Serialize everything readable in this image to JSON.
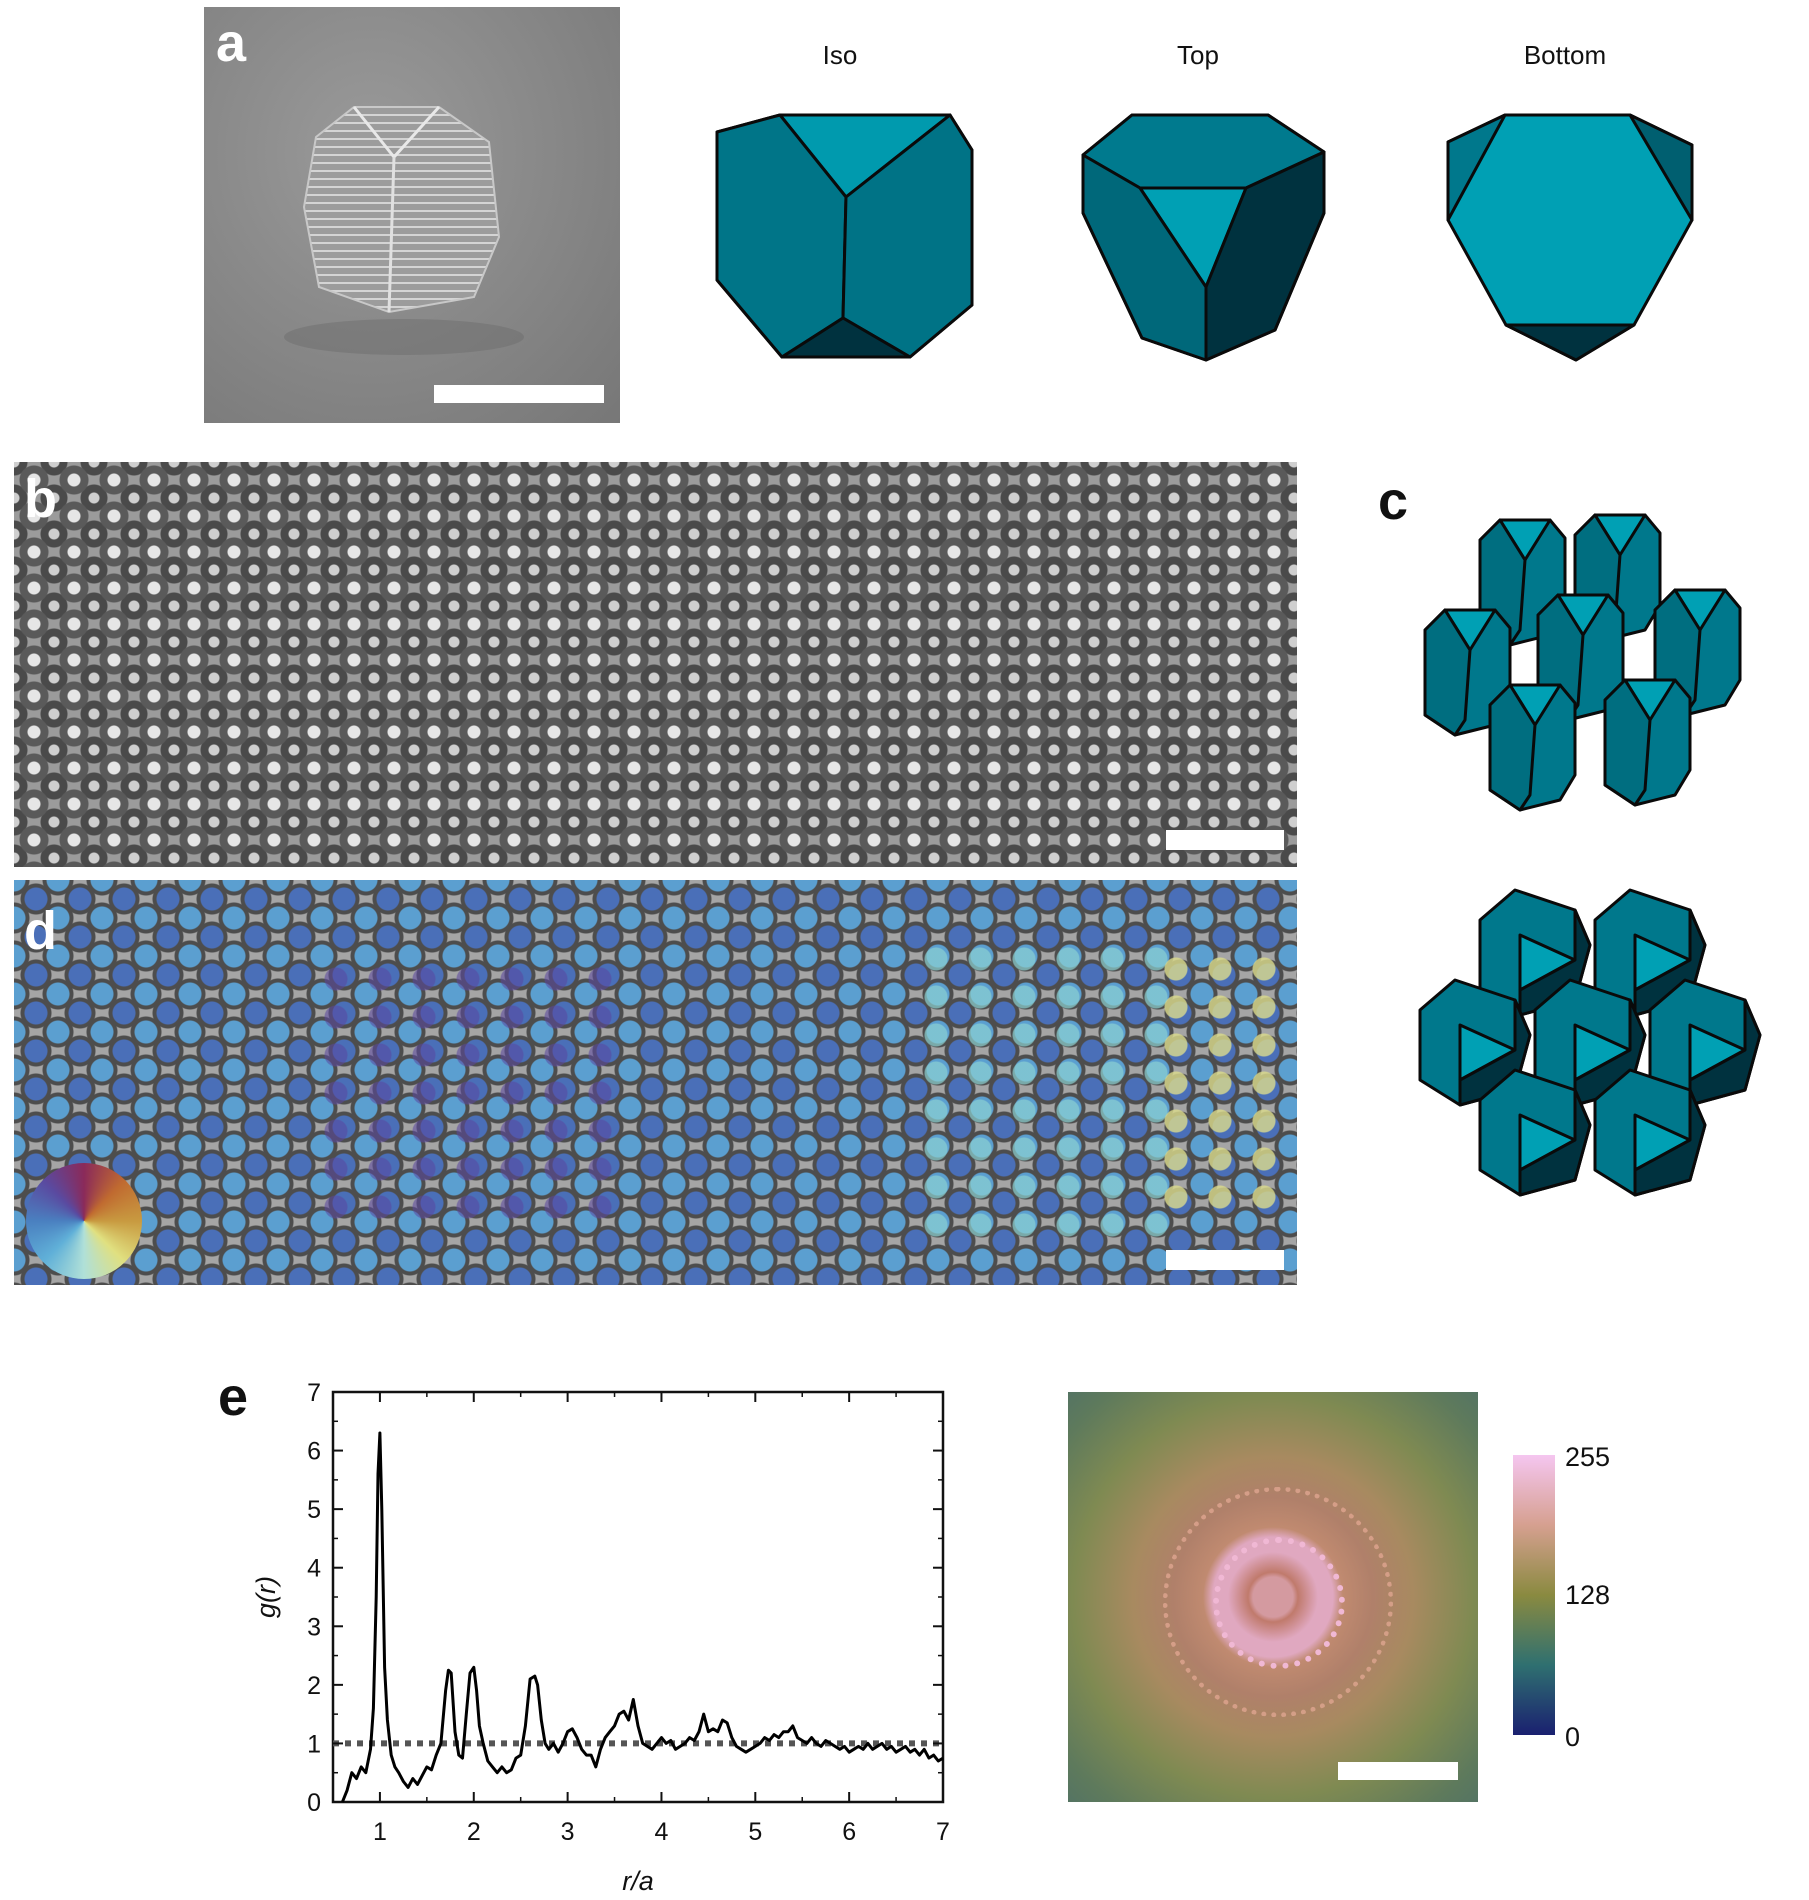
{
  "panels": {
    "a": {
      "letter": "a",
      "views": [
        "Iso",
        "Top",
        "Bottom"
      ]
    },
    "b": {
      "letter": "b"
    },
    "c": {
      "letter": "c"
    },
    "d": {
      "letter": "d"
    },
    "e": {
      "letter": "e"
    }
  },
  "colors": {
    "facet_light": "#00a0b4",
    "facet_mid": "#00788c",
    "facet_dark": "#005f70",
    "facet_darkest": "#00323f",
    "outline": "#0a0a0a"
  },
  "chart_data": {
    "type": "line",
    "xlabel": "r/a",
    "ylabel": "g(r)",
    "xlim": [
      0.5,
      7
    ],
    "ylim": [
      0,
      7
    ],
    "xticks": [
      1,
      2,
      3,
      4,
      5,
      6,
      7
    ],
    "yticks": [
      0,
      1,
      2,
      3,
      4,
      5,
      6,
      7
    ],
    "reference_line": {
      "y": 1,
      "style": "dotted"
    },
    "series": [
      {
        "x": [
          0.6,
          0.65,
          0.7,
          0.75,
          0.8,
          0.85,
          0.9,
          0.93,
          0.96,
          0.98,
          1.0,
          1.02,
          1.05,
          1.08,
          1.12,
          1.16,
          1.2,
          1.25,
          1.3,
          1.35,
          1.4,
          1.45,
          1.5,
          1.55,
          1.6,
          1.65,
          1.7,
          1.73,
          1.76,
          1.8,
          1.84,
          1.88,
          1.92,
          1.96,
          2.0,
          2.03,
          2.06,
          2.1,
          2.15,
          2.2,
          2.25,
          2.3,
          2.35,
          2.4,
          2.45,
          2.5,
          2.55,
          2.6,
          2.65,
          2.68,
          2.72,
          2.76,
          2.8,
          2.85,
          2.9,
          2.95,
          3.0,
          3.05,
          3.1,
          3.15,
          3.2,
          3.25,
          3.3,
          3.35,
          3.4,
          3.45,
          3.5,
          3.55,
          3.6,
          3.65,
          3.7,
          3.75,
          3.8,
          3.85,
          3.9,
          3.95,
          4.0,
          4.05,
          4.1,
          4.15,
          4.2,
          4.25,
          4.3,
          4.35,
          4.4,
          4.45,
          4.5,
          4.55,
          4.6,
          4.65,
          4.7,
          4.75,
          4.8,
          4.85,
          4.9,
          4.95,
          5.0,
          5.05,
          5.1,
          5.15,
          5.2,
          5.25,
          5.3,
          5.35,
          5.4,
          5.45,
          5.5,
          5.55,
          5.6,
          5.65,
          5.7,
          5.75,
          5.8,
          5.85,
          5.9,
          5.95,
          6.0,
          6.05,
          6.1,
          6.15,
          6.2,
          6.25,
          6.3,
          6.35,
          6.4,
          6.45,
          6.5,
          6.55,
          6.6,
          6.65,
          6.7,
          6.75,
          6.8,
          6.85,
          6.9,
          6.95,
          7.0
        ],
        "values": [
          0.0,
          0.2,
          0.5,
          0.4,
          0.6,
          0.5,
          0.9,
          1.6,
          3.5,
          5.6,
          6.3,
          5.0,
          2.3,
          1.4,
          0.8,
          0.6,
          0.5,
          0.35,
          0.25,
          0.4,
          0.3,
          0.45,
          0.6,
          0.55,
          0.8,
          1.0,
          1.9,
          2.25,
          2.2,
          1.2,
          0.8,
          0.75,
          1.5,
          2.2,
          2.3,
          1.9,
          1.3,
          1.0,
          0.7,
          0.6,
          0.5,
          0.6,
          0.5,
          0.55,
          0.75,
          0.8,
          1.3,
          2.1,
          2.15,
          2.0,
          1.4,
          1.0,
          0.9,
          1.0,
          0.85,
          1.0,
          1.2,
          1.25,
          1.1,
          0.9,
          0.8,
          0.8,
          0.6,
          0.9,
          1.1,
          1.2,
          1.3,
          1.5,
          1.55,
          1.4,
          1.75,
          1.3,
          1.0,
          0.95,
          0.9,
          1.0,
          1.1,
          1.0,
          1.05,
          0.9,
          0.95,
          1.0,
          1.1,
          1.05,
          1.2,
          1.5,
          1.2,
          1.25,
          1.2,
          1.4,
          1.35,
          1.1,
          0.95,
          0.9,
          0.85,
          0.9,
          0.95,
          1.0,
          1.1,
          1.05,
          1.15,
          1.1,
          1.2,
          1.2,
          1.3,
          1.1,
          1.05,
          1.0,
          1.1,
          1.0,
          0.95,
          1.05,
          1.0,
          0.95,
          0.9,
          0.95,
          0.85,
          0.9,
          0.95,
          0.9,
          1.0,
          0.9,
          0.95,
          1.0,
          0.9,
          0.95,
          0.85,
          0.9,
          0.95,
          0.85,
          0.9,
          0.8,
          0.9,
          0.75,
          0.8,
          0.7,
          0.75
        ]
      }
    ]
  },
  "colorbar": {
    "max_label": "255",
    "mid_label": "128",
    "min_label": "0"
  }
}
